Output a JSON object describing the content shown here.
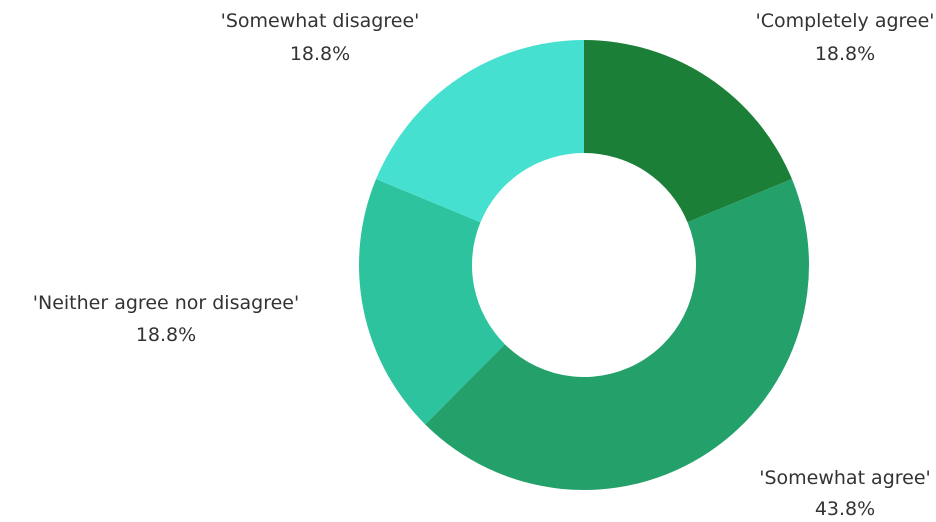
{
  "chart_data": {
    "type": "pie",
    "donut": true,
    "slices": [
      {
        "label": "'Completely agree'",
        "value": 18.8,
        "display": "18.8%",
        "color": "#1b7f37"
      },
      {
        "label": "'Somewhat agree'",
        "value": 43.8,
        "display": "43.8%",
        "color": "#24a06b"
      },
      {
        "label": "'Neither agree nor disagree'",
        "value": 18.8,
        "display": "18.8%",
        "color": "#2cc39e"
      },
      {
        "label": "'Somewhat disagree'",
        "value": 18.8,
        "display": "18.8%",
        "color": "#45e0cf"
      }
    ]
  }
}
